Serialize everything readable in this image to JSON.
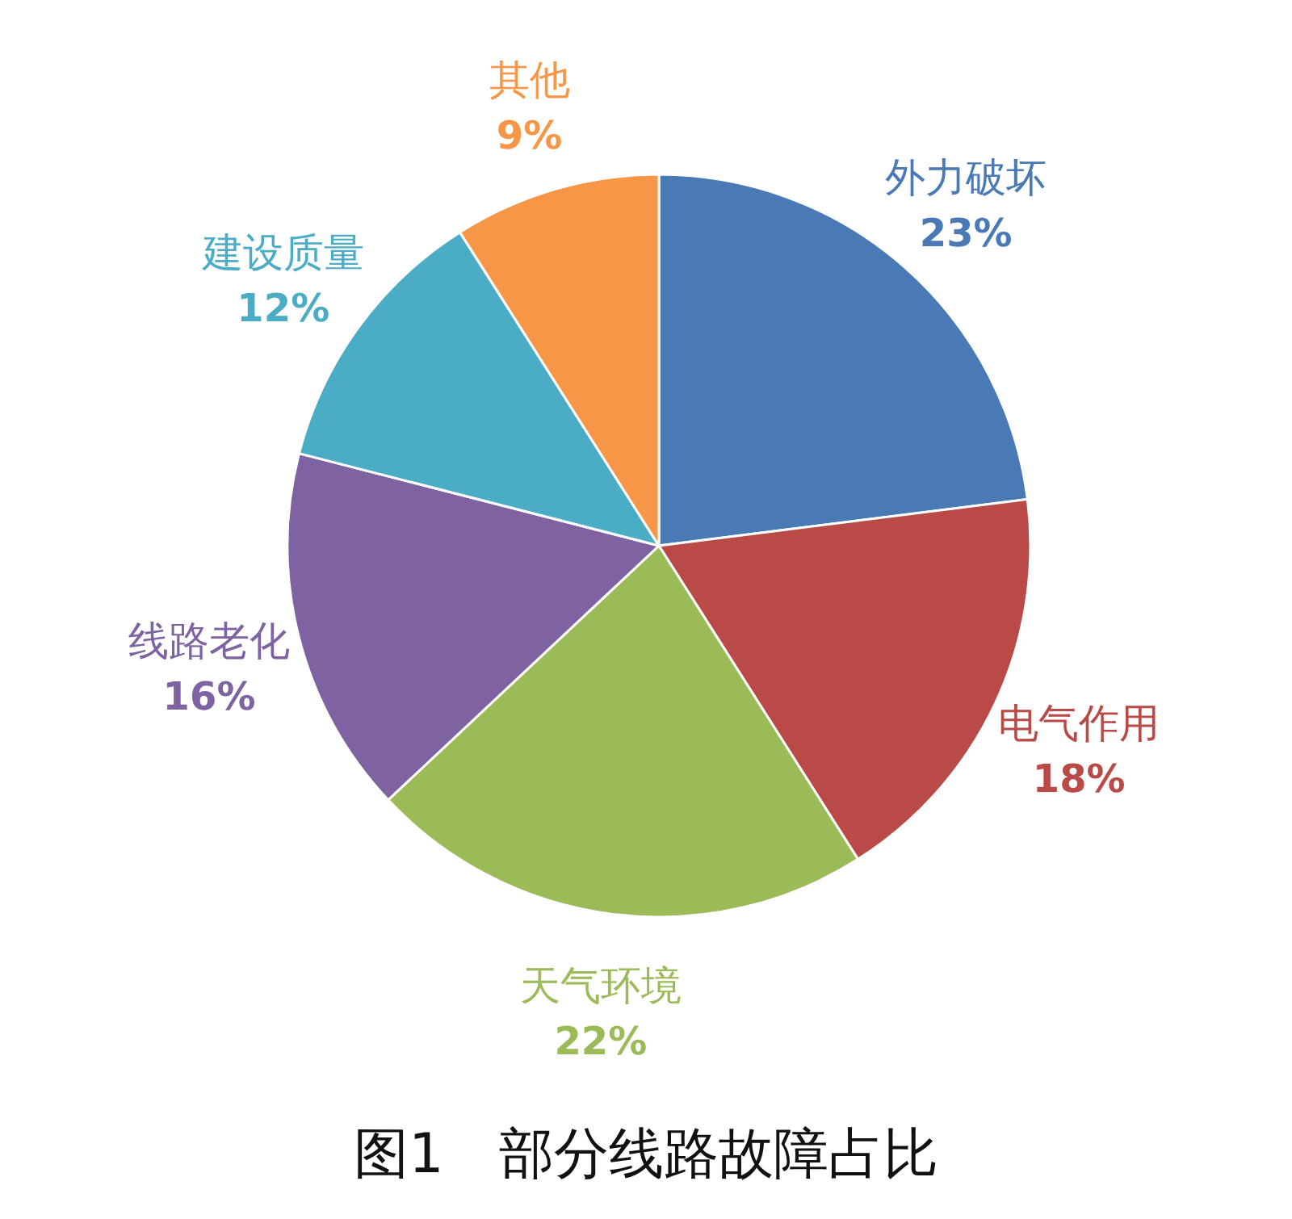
{
  "chart_data": {
    "type": "pie",
    "title": "图1　部分线路故障占比",
    "categories": [
      "外力破坏",
      "电气作用",
      "天气环境",
      "线路老化",
      "建设质量",
      "其他"
    ],
    "values": [
      23,
      18,
      22,
      16,
      12,
      9
    ],
    "colors": [
      "#4a7ab5",
      "#b94a48",
      "#9bbb59",
      "#7e62a1",
      "#4bacc6",
      "#f79646"
    ],
    "value_labels": [
      "23%",
      "18%",
      "22%",
      "16%",
      "12%",
      "9%"
    ]
  }
}
